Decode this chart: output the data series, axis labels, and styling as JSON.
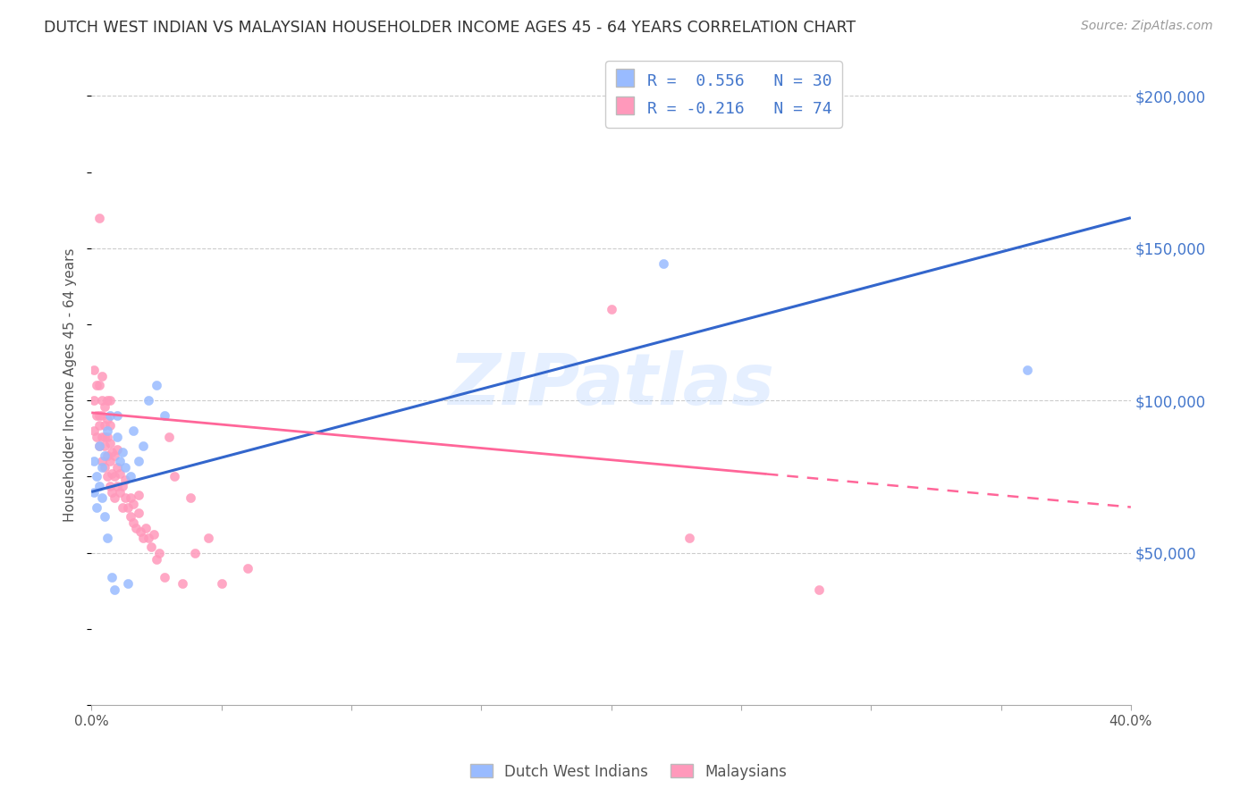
{
  "title": "DUTCH WEST INDIAN VS MALAYSIAN HOUSEHOLDER INCOME AGES 45 - 64 YEARS CORRELATION CHART",
  "source": "Source: ZipAtlas.com",
  "ylabel": "Householder Income Ages 45 - 64 years",
  "xlim": [
    0.0,
    0.4
  ],
  "ylim": [
    0,
    210000
  ],
  "yticks": [
    0,
    50000,
    100000,
    150000,
    200000
  ],
  "ytick_labels": [
    "",
    "$50,000",
    "$100,000",
    "$150,000",
    "$200,000"
  ],
  "watermark": "ZIPatlas",
  "color_blue": "#99bbff",
  "color_pink": "#ff99bb",
  "color_line_blue": "#3366cc",
  "color_line_pink": "#ff6699",
  "color_ytick": "#4477cc",
  "dutch_line_x0": 0.0,
  "dutch_line_y0": 70000,
  "dutch_line_x1": 0.4,
  "dutch_line_y1": 160000,
  "malay_line_x0": 0.0,
  "malay_line_y0": 96000,
  "malay_line_x1": 0.4,
  "malay_line_y1": 65000,
  "dutch_x": [
    0.001,
    0.001,
    0.002,
    0.002,
    0.003,
    0.003,
    0.004,
    0.004,
    0.005,
    0.005,
    0.006,
    0.006,
    0.007,
    0.008,
    0.009,
    0.01,
    0.01,
    0.011,
    0.012,
    0.013,
    0.014,
    0.015,
    0.016,
    0.018,
    0.02,
    0.022,
    0.025,
    0.028,
    0.22,
    0.36
  ],
  "dutch_y": [
    70000,
    80000,
    65000,
    75000,
    72000,
    85000,
    68000,
    78000,
    62000,
    82000,
    55000,
    90000,
    95000,
    42000,
    38000,
    88000,
    95000,
    80000,
    83000,
    78000,
    40000,
    75000,
    90000,
    80000,
    85000,
    100000,
    105000,
    95000,
    145000,
    110000
  ],
  "malay_x": [
    0.001,
    0.001,
    0.001,
    0.002,
    0.002,
    0.002,
    0.003,
    0.003,
    0.003,
    0.003,
    0.003,
    0.004,
    0.004,
    0.004,
    0.004,
    0.004,
    0.005,
    0.005,
    0.005,
    0.005,
    0.005,
    0.006,
    0.006,
    0.006,
    0.006,
    0.006,
    0.007,
    0.007,
    0.007,
    0.007,
    0.007,
    0.008,
    0.008,
    0.008,
    0.009,
    0.009,
    0.009,
    0.01,
    0.01,
    0.01,
    0.011,
    0.011,
    0.012,
    0.012,
    0.013,
    0.013,
    0.014,
    0.015,
    0.015,
    0.016,
    0.016,
    0.017,
    0.018,
    0.018,
    0.019,
    0.02,
    0.021,
    0.022,
    0.023,
    0.024,
    0.025,
    0.026,
    0.028,
    0.03,
    0.032,
    0.035,
    0.038,
    0.04,
    0.045,
    0.05,
    0.06,
    0.2,
    0.23,
    0.28
  ],
  "malay_y": [
    90000,
    100000,
    110000,
    95000,
    105000,
    88000,
    160000,
    85000,
    95000,
    105000,
    92000,
    80000,
    88000,
    95000,
    100000,
    108000,
    78000,
    85000,
    92000,
    98000,
    88000,
    75000,
    82000,
    88000,
    94000,
    100000,
    72000,
    80000,
    86000,
    92000,
    100000,
    70000,
    76000,
    83000,
    68000,
    75000,
    82000,
    72000,
    78000,
    84000,
    70000,
    76000,
    65000,
    72000,
    68000,
    74000,
    65000,
    62000,
    68000,
    60000,
    66000,
    58000,
    63000,
    69000,
    57000,
    55000,
    58000,
    55000,
    52000,
    56000,
    48000,
    50000,
    42000,
    88000,
    75000,
    40000,
    68000,
    50000,
    55000,
    40000,
    45000,
    130000,
    55000,
    38000
  ]
}
